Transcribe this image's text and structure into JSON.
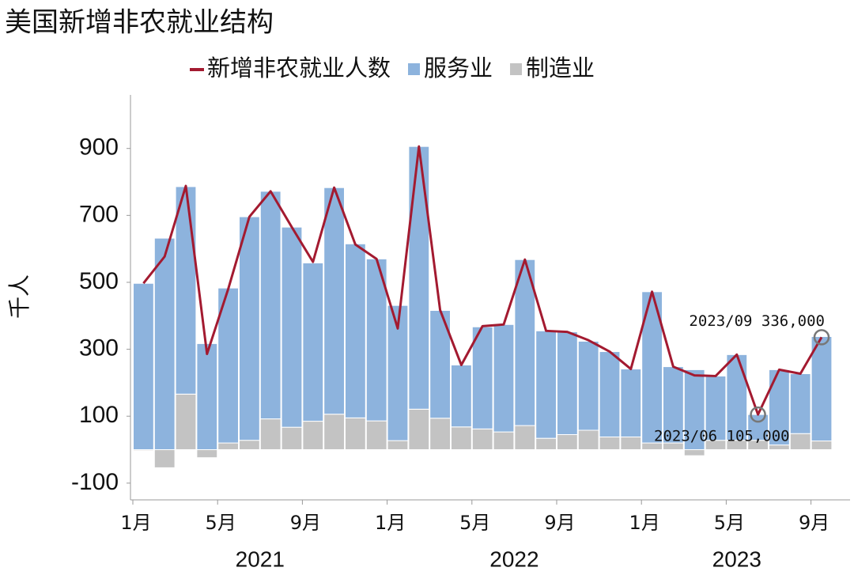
{
  "chart_data": {
    "type": "bar",
    "title": "美国新增非农就业结构",
    "y_label": "千人",
    "categories": [
      "1月",
      null,
      null,
      null,
      "5月",
      null,
      null,
      null,
      "9月",
      null,
      null,
      null,
      "1月",
      null,
      null,
      null,
      "5月",
      null,
      null,
      null,
      "9月",
      null,
      null,
      null,
      "1月",
      null,
      null,
      null,
      "5月",
      null,
      null,
      null,
      "9月"
    ],
    "years": [
      "2021",
      "2022",
      "2023"
    ],
    "series": [
      {
        "name": "新增非农就业人数",
        "type": "line",
        "color": "#a31a30",
        "values": [
          497,
          577,
          788,
          286,
          480,
          696,
          772,
          665,
          561,
          783,
          613,
          570,
          362,
          906,
          417,
          253,
          369,
          374,
          568,
          355,
          352,
          327,
          293,
          241,
          472,
          248,
          222,
          220,
          284,
          105,
          239,
          227,
          336
        ]
      },
      {
        "name": "服务业",
        "type": "bar",
        "color": "#8db3dd",
        "values": [
          497,
          632,
          620,
          317,
          463,
          668,
          680,
          598,
          473,
          677,
          520,
          484,
          404,
          785,
          322,
          185,
          305,
          321,
          496,
          321,
          307,
          266,
          255,
          203,
          452,
          228,
          239,
          192,
          256,
          77,
          225,
          179,
          312
        ]
      },
      {
        "name": "制造业",
        "type": "bar",
        "color": "#c3c3c3",
        "values": [
          -3,
          -54,
          166,
          -24,
          20,
          28,
          92,
          67,
          85,
          106,
          95,
          86,
          27,
          121,
          94,
          68,
          62,
          53,
          72,
          34,
          45,
          58,
          38,
          38,
          20,
          20,
          -18,
          28,
          28,
          28,
          14,
          48,
          26
        ]
      }
    ],
    "annotations": [
      {
        "text": "2023/06 105,000",
        "index": 29
      },
      {
        "text": "2023/09 336,000",
        "index": 32
      }
    ],
    "ylim": [
      -150,
      1060
    ],
    "yticks": [
      -100,
      100,
      300,
      500,
      700,
      900
    ],
    "legend": "top"
  }
}
